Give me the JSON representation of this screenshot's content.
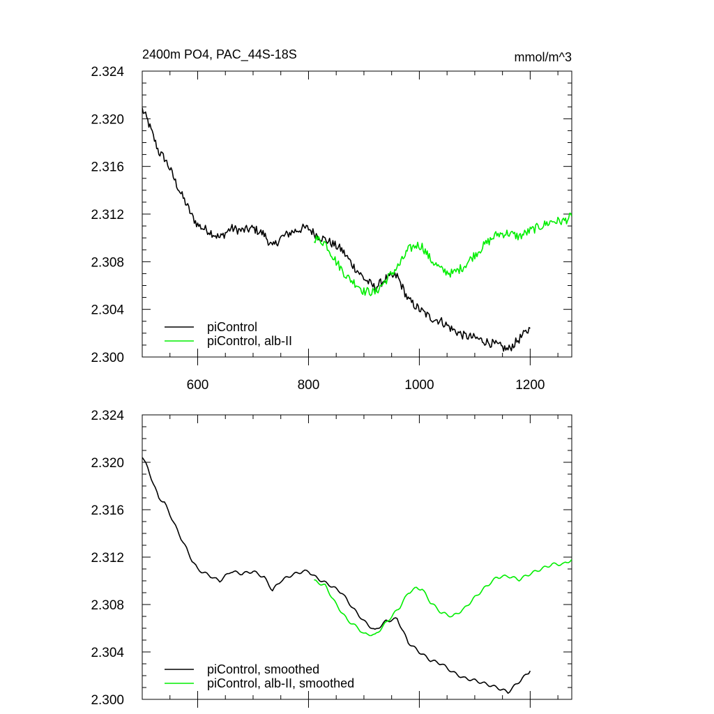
{
  "chart_data": [
    {
      "type": "line",
      "title": "2400m PO4, PAC_44S-18S",
      "units": "mmol/m^3",
      "xlim": [
        500,
        1275
      ],
      "ylim": [
        2.3,
        2.324
      ],
      "xticks": [
        "600",
        "800",
        "1000",
        "1200"
      ],
      "yticks": [
        "2.300",
        "2.304",
        "2.308",
        "2.312",
        "2.316",
        "2.320",
        "2.324"
      ],
      "legend_position": "bottom-left",
      "series": [
        {
          "name": "piControl",
          "color": "#000000",
          "noise": true,
          "x": [
            500,
            510,
            520,
            530,
            540,
            550,
            560,
            570,
            580,
            590,
            600,
            610,
            620,
            630,
            640,
            650,
            660,
            680,
            700,
            720,
            735,
            750,
            770,
            790,
            800,
            810,
            820,
            840,
            860,
            880,
            900,
            920,
            940,
            960,
            980,
            1000,
            1020,
            1040,
            1060,
            1080,
            1100,
            1120,
            1140,
            1160,
            1180,
            1200
          ],
          "y": [
            2.3208,
            2.3198,
            2.3185,
            2.3172,
            2.3167,
            2.3158,
            2.3147,
            2.3137,
            2.3128,
            2.3118,
            2.3111,
            2.3108,
            2.3106,
            2.3103,
            2.31,
            2.3104,
            2.3108,
            2.3106,
            2.3108,
            2.3103,
            2.3092,
            2.31,
            2.3105,
            2.3108,
            2.3108,
            2.3104,
            2.3101,
            2.3096,
            2.309,
            2.3077,
            2.3066,
            2.3058,
            2.3066,
            2.3068,
            2.3048,
            2.304,
            2.3033,
            2.303,
            2.3023,
            2.3018,
            2.3016,
            2.3013,
            2.301,
            2.3006,
            2.3015,
            2.3024
          ]
        },
        {
          "name": "piControl, alb-II",
          "color": "#00ee00",
          "noise": true,
          "x": [
            810,
            830,
            850,
            870,
            890,
            900,
            910,
            920,
            935,
            950,
            965,
            980,
            995,
            1005,
            1020,
            1040,
            1060,
            1080,
            1100,
            1120,
            1140,
            1160,
            1180,
            1200,
            1220,
            1240,
            1260,
            1275
          ],
          "y": [
            2.31,
            2.3096,
            2.308,
            2.3067,
            2.306,
            2.3055,
            2.3055,
            2.3054,
            2.3062,
            2.307,
            2.3078,
            2.309,
            2.3094,
            2.3093,
            2.3082,
            2.3073,
            2.307,
            2.3076,
            2.3086,
            2.3095,
            2.3103,
            2.3104,
            2.3101,
            2.3106,
            2.311,
            2.3114,
            2.3114,
            2.3118
          ]
        }
      ]
    },
    {
      "type": "line",
      "title": "",
      "units": "",
      "xlim": [
        500,
        1275
      ],
      "ylim": [
        2.3,
        2.324
      ],
      "xticks": [],
      "yticks": [
        "2.300",
        "2.304",
        "2.308",
        "2.312",
        "2.316",
        "2.320",
        "2.324"
      ],
      "legend_position": "bottom-left",
      "series": [
        {
          "name": "piControl, smoothed",
          "color": "#000000",
          "noise": false,
          "x": [
            500,
            510,
            520,
            530,
            540,
            550,
            560,
            570,
            580,
            590,
            600,
            610,
            620,
            630,
            640,
            650,
            660,
            680,
            700,
            720,
            735,
            750,
            770,
            790,
            800,
            810,
            820,
            840,
            860,
            880,
            900,
            920,
            940,
            960,
            980,
            1000,
            1020,
            1040,
            1060,
            1080,
            1100,
            1120,
            1140,
            1160,
            1180,
            1200
          ],
          "y": [
            2.3205,
            2.3195,
            2.3182,
            2.317,
            2.3166,
            2.3156,
            2.3146,
            2.3136,
            2.3127,
            2.3117,
            2.311,
            2.3107,
            2.3105,
            2.3102,
            2.31,
            2.3104,
            2.3108,
            2.3106,
            2.3108,
            2.3103,
            2.3092,
            2.31,
            2.3105,
            2.3108,
            2.3108,
            2.3104,
            2.3101,
            2.3096,
            2.309,
            2.3077,
            2.3066,
            2.3058,
            2.3066,
            2.3068,
            2.3048,
            2.304,
            2.3033,
            2.303,
            2.3023,
            2.3018,
            2.3016,
            2.3013,
            2.301,
            2.3006,
            2.3015,
            2.3024
          ]
        },
        {
          "name": "piControl, alb-II, smoothed",
          "color": "#00ee00",
          "noise": false,
          "x": [
            810,
            830,
            850,
            870,
            890,
            900,
            910,
            920,
            935,
            950,
            965,
            980,
            995,
            1005,
            1020,
            1040,
            1060,
            1080,
            1100,
            1120,
            1140,
            1160,
            1180,
            1200,
            1220,
            1240,
            1260,
            1275
          ],
          "y": [
            2.31,
            2.3096,
            2.308,
            2.3067,
            2.306,
            2.3055,
            2.3055,
            2.3054,
            2.3062,
            2.307,
            2.3078,
            2.309,
            2.3094,
            2.3093,
            2.3082,
            2.3073,
            2.307,
            2.3076,
            2.3086,
            2.3095,
            2.3103,
            2.3104,
            2.3101,
            2.3106,
            2.311,
            2.3114,
            2.3114,
            2.3118
          ]
        }
      ]
    }
  ]
}
